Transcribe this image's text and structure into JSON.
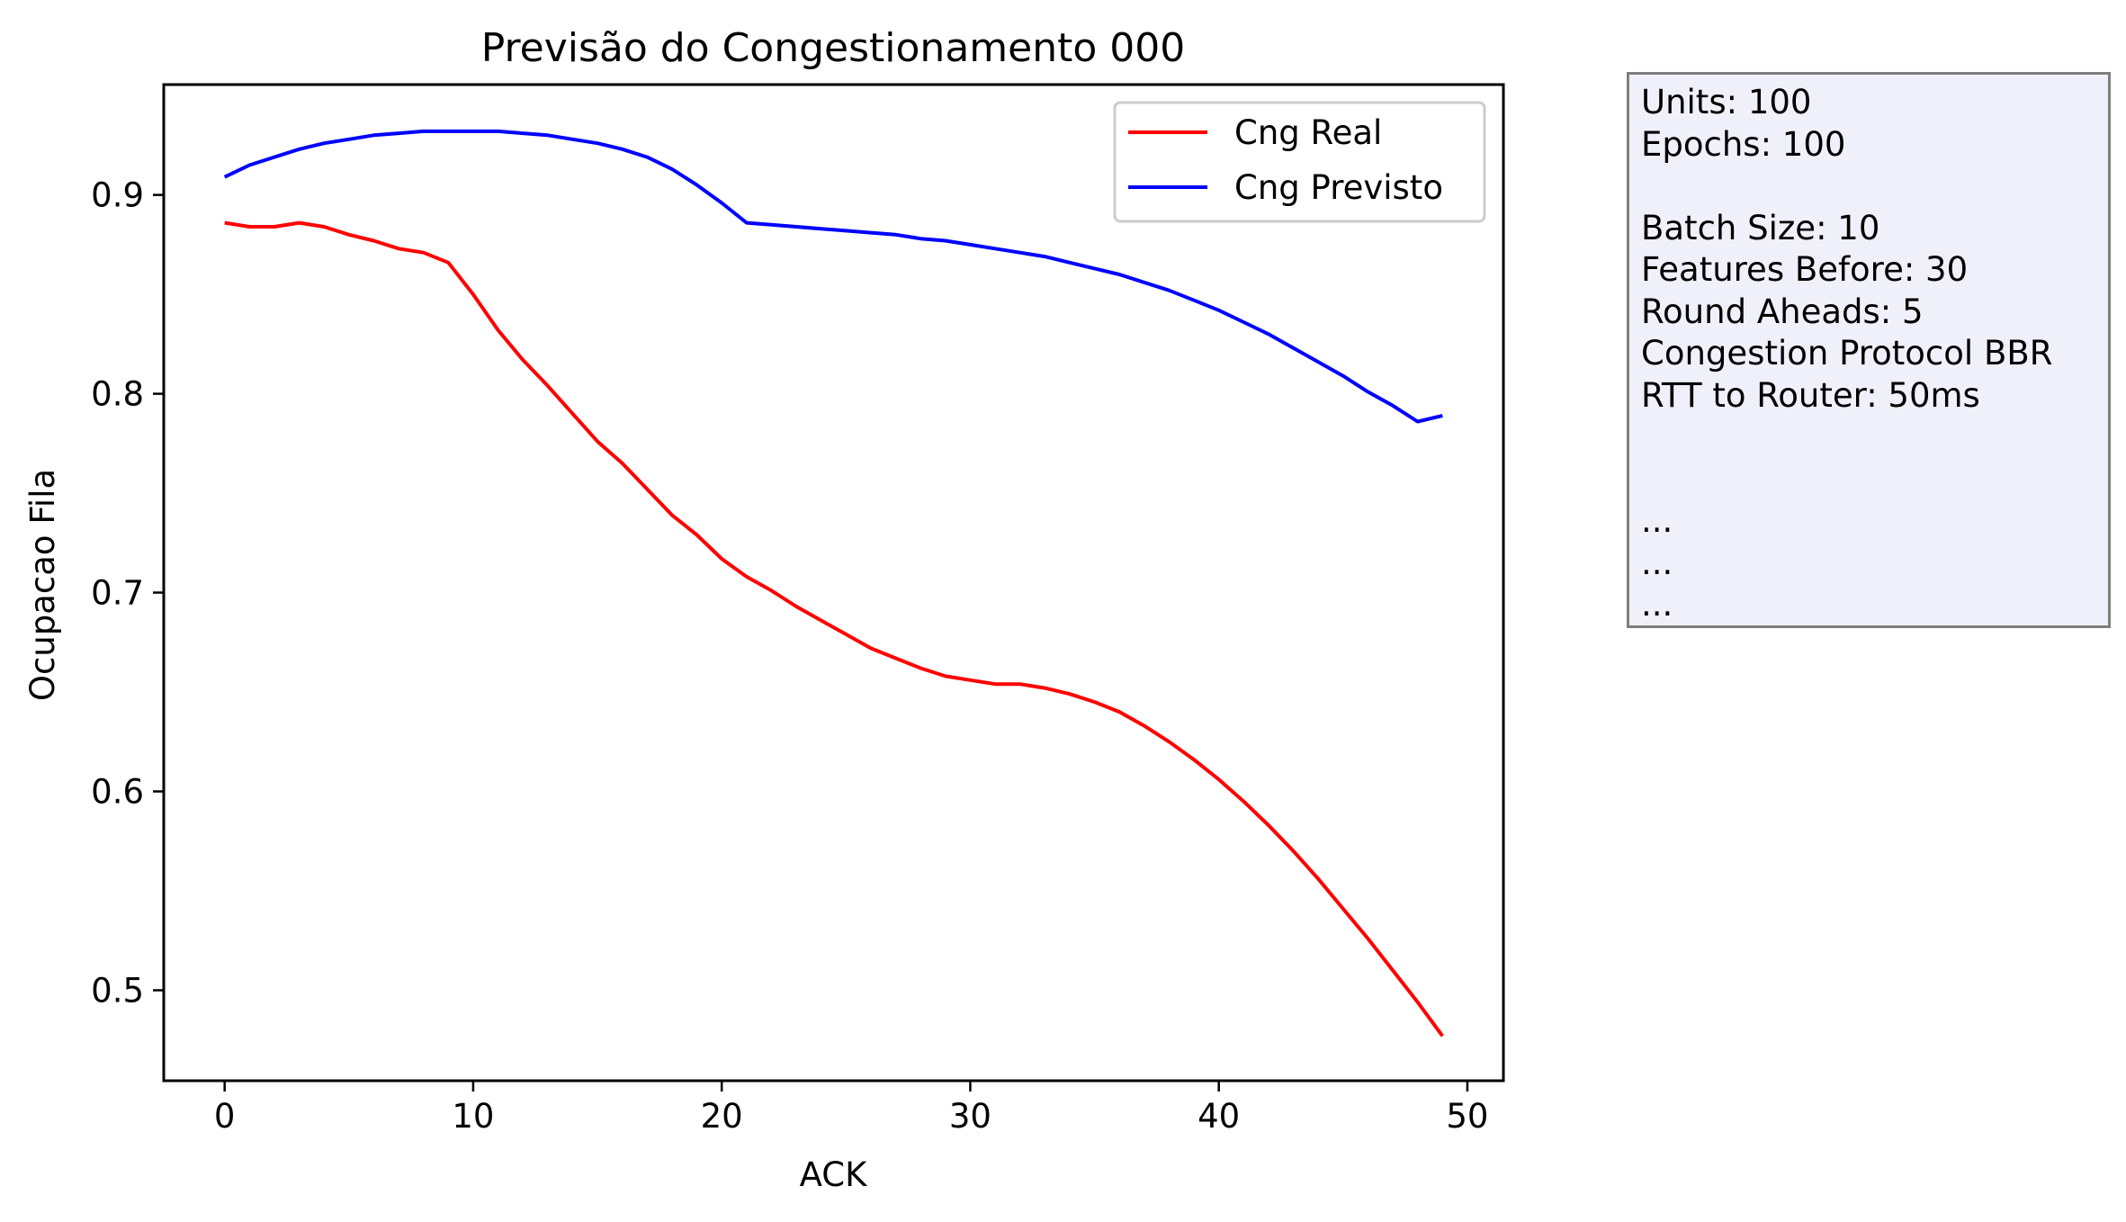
{
  "chart_data": {
    "type": "line",
    "title": "Previsão do Congestionamento 000",
    "xlabel": "ACK",
    "ylabel": "Ocupacao Fila",
    "xlim": [
      -2.45,
      51.45
    ],
    "ylim": [
      0.4545,
      0.9555
    ],
    "x_ticks": [
      0,
      10,
      20,
      30,
      40,
      50
    ],
    "y_ticks": [
      0.5,
      0.6,
      0.7,
      0.8,
      0.9
    ],
    "x_tick_labels": [
      "0",
      "10",
      "20",
      "30",
      "40",
      "50"
    ],
    "y_tick_labels": [
      "0.5",
      "0.6",
      "0.7",
      "0.8",
      "0.9"
    ],
    "grid": false,
    "legend_position": "top-right",
    "series": [
      {
        "name": "Cng Real",
        "color": "#ff0000",
        "x": [
          0,
          1,
          2,
          3,
          4,
          5,
          6,
          7,
          8,
          9,
          10,
          11,
          12,
          13,
          14,
          15,
          16,
          17,
          18,
          19,
          20,
          21,
          22,
          23,
          24,
          25,
          26,
          27,
          28,
          29,
          30,
          31,
          32,
          33,
          34,
          35,
          36,
          37,
          38,
          39,
          40,
          41,
          42,
          43,
          44,
          45,
          46,
          47,
          48,
          49
        ],
        "y": [
          0.886,
          0.884,
          0.884,
          0.886,
          0.884,
          0.88,
          0.877,
          0.873,
          0.871,
          0.866,
          0.85,
          0.832,
          0.817,
          0.804,
          0.79,
          0.776,
          0.765,
          0.752,
          0.739,
          0.729,
          0.717,
          0.708,
          0.701,
          0.693,
          0.686,
          0.679,
          0.672,
          0.667,
          0.662,
          0.658,
          0.656,
          0.654,
          0.654,
          0.652,
          0.649,
          0.645,
          0.64,
          0.633,
          0.625,
          0.616,
          0.606,
          0.595,
          0.583,
          0.57,
          0.556,
          0.541,
          0.526,
          0.51,
          0.494,
          0.477
        ]
      },
      {
        "name": "Cng Previsto",
        "color": "#0000ff",
        "x": [
          0,
          1,
          2,
          3,
          4,
          5,
          6,
          7,
          8,
          9,
          10,
          11,
          12,
          13,
          14,
          15,
          16,
          17,
          18,
          19,
          20,
          21,
          22,
          23,
          24,
          25,
          26,
          27,
          28,
          29,
          30,
          31,
          32,
          33,
          34,
          35,
          36,
          37,
          38,
          39,
          40,
          41,
          42,
          43,
          44,
          45,
          46,
          47,
          48,
          49
        ],
        "y": [
          0.909,
          0.915,
          0.919,
          0.923,
          0.926,
          0.928,
          0.93,
          0.931,
          0.932,
          0.932,
          0.932,
          0.932,
          0.931,
          0.93,
          0.928,
          0.926,
          0.923,
          0.919,
          0.913,
          0.905,
          0.896,
          0.886,
          0.885,
          0.884,
          0.883,
          0.882,
          0.881,
          0.88,
          0.878,
          0.877,
          0.875,
          0.873,
          0.871,
          0.869,
          0.866,
          0.863,
          0.86,
          0.856,
          0.852,
          0.847,
          0.842,
          0.836,
          0.83,
          0.823,
          0.816,
          0.809,
          0.801,
          0.794,
          0.786,
          0.789
        ]
      }
    ]
  },
  "info_box": {
    "lines": [
      "Units: 100",
      "Epochs: 100",
      "",
      "Batch Size: 10",
      "Features Before: 30",
      "Round Aheads: 5",
      "Congestion Protocol BBR",
      "RTT to Router: 50ms",
      "",
      "",
      "...",
      "...",
      "..."
    ]
  }
}
